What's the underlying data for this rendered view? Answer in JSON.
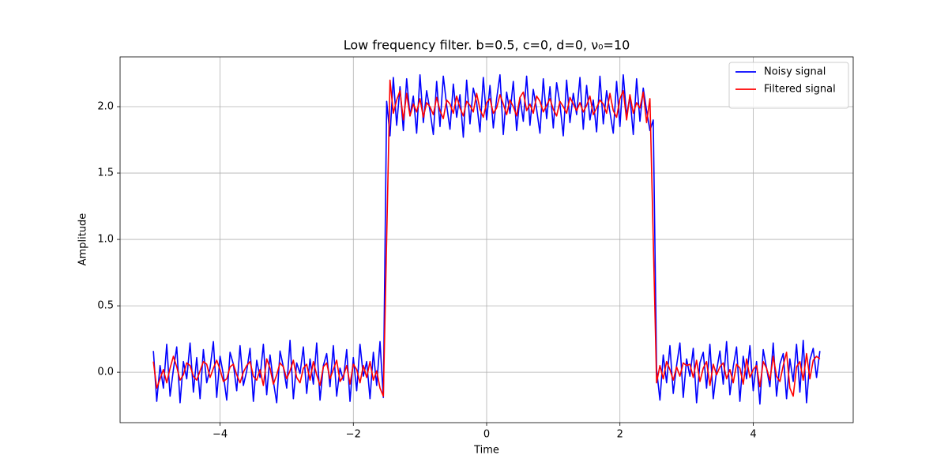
{
  "chart_data": {
    "type": "line",
    "title": "Low frequency filter. b=0.5, c=0, d=0, ν₀=10",
    "x_label": "Time",
    "y_label": "Amplitude",
    "xlim": [
      -5.5,
      5.5
    ],
    "ylim": [
      -0.38,
      2.375
    ],
    "xticks": [
      {
        "value": -4,
        "label": "−4"
      },
      {
        "value": -2,
        "label": "−2"
      },
      0,
      2,
      4
    ],
    "yticks": [
      {
        "value": 0,
        "label": "0.0"
      },
      {
        "value": 0.5,
        "label": "0.5"
      },
      {
        "value": 1,
        "label": "1.0"
      },
      {
        "value": 1.5,
        "label": "1.5"
      },
      {
        "value": 2,
        "label": "2.0"
      }
    ],
    "grid": true,
    "legend": "upper-right",
    "x": [
      -5,
      -4.95,
      -4.9,
      -4.85,
      -4.8,
      -4.75,
      -4.7,
      -4.65,
      -4.6,
      -4.55,
      -4.5,
      -4.45,
      -4.4,
      -4.35,
      -4.3,
      -4.25,
      -4.2,
      -4.15,
      -4.1,
      -4.05,
      -4,
      -3.95,
      -3.9,
      -3.85,
      -3.8,
      -3.75,
      -3.7,
      -3.65,
      -3.6,
      -3.55,
      -3.5,
      -3.45,
      -3.4,
      -3.35,
      -3.3,
      -3.25,
      -3.2,
      -3.15,
      -3.1,
      -3.05,
      -3,
      -2.95,
      -2.9,
      -2.85,
      -2.8,
      -2.75,
      -2.7,
      -2.65,
      -2.6,
      -2.55,
      -2.5,
      -2.45,
      -2.4,
      -2.35,
      -2.3,
      -2.25,
      -2.2,
      -2.15,
      -2.1,
      -2.05,
      -2,
      -1.95,
      -1.9,
      -1.85,
      -1.8,
      -1.75,
      -1.7,
      -1.65,
      -1.6,
      -1.55,
      -1.5,
      -1.45,
      -1.4,
      -1.35,
      -1.3,
      -1.25,
      -1.2,
      -1.15,
      -1.1,
      -1.05,
      -1,
      -0.95,
      -0.9,
      -0.85,
      -0.8,
      -0.75,
      -0.7,
      -0.65,
      -0.6,
      -0.55,
      -0.5,
      -0.45,
      -0.4,
      -0.35,
      -0.3,
      -0.25,
      -0.2,
      -0.15,
      -0.1,
      -0.05,
      0,
      0.05,
      0.1,
      0.15,
      0.2,
      0.25,
      0.3,
      0.35,
      0.4,
      0.45,
      0.5,
      0.55,
      0.6,
      0.65,
      0.7,
      0.75,
      0.8,
      0.85,
      0.9,
      0.95,
      1,
      1.05,
      1.1,
      1.15,
      1.2,
      1.25,
      1.3,
      1.35,
      1.4,
      1.45,
      1.5,
      1.55,
      1.6,
      1.65,
      1.7,
      1.75,
      1.8,
      1.85,
      1.9,
      1.95,
      2,
      2.05,
      2.1,
      2.15,
      2.2,
      2.25,
      2.3,
      2.35,
      2.4,
      2.45,
      2.5,
      2.55,
      2.6,
      2.65,
      2.7,
      2.75,
      2.8,
      2.85,
      2.9,
      2.95,
      3,
      3.05,
      3.1,
      3.15,
      3.2,
      3.25,
      3.3,
      3.35,
      3.4,
      3.45,
      3.5,
      3.55,
      3.6,
      3.65,
      3.7,
      3.75,
      3.8,
      3.85,
      3.9,
      3.95,
      4,
      4.05,
      4.1,
      4.15,
      4.2,
      4.25,
      4.3,
      4.35,
      4.4,
      4.45,
      4.5,
      4.55,
      4.6,
      4.65,
      4.7,
      4.75,
      4.8,
      4.85,
      4.9,
      4.95,
      5
    ],
    "series": [
      {
        "name": "Noisy signal",
        "color": "#0000ff",
        "values": [
          0.16,
          -0.22,
          0.05,
          -0.12,
          0.21,
          -0.18,
          0.02,
          0.19,
          -0.23,
          0.08,
          -0.05,
          0.22,
          -0.15,
          0.11,
          -0.2,
          0.17,
          -0.08,
          0.03,
          0.23,
          -0.19,
          0.12,
          -0.02,
          -0.21,
          0.15,
          0.06,
          -0.14,
          0.2,
          -0.1,
          0.01,
          0.18,
          -0.22,
          0.09,
          -0.04,
          0.21,
          -0.17,
          0.13,
          -0.07,
          -0.23,
          0.16,
          0.04,
          -0.12,
          0.24,
          -0.2,
          0.07,
          -0.01,
          0.19,
          -0.16,
          0.1,
          -0.09,
          0.22,
          -0.21,
          0.05,
          0.14,
          -0.11,
          0.2,
          -0.18,
          0.03,
          -0.06,
          0.17,
          -0.22,
          0.11,
          -0.14,
          0.21,
          -0.03,
          0.08,
          -0.2,
          0.15,
          -0.1,
          0.23,
          -0.19,
          2.04,
          1.78,
          2.22,
          1.86,
          2.15,
          1.82,
          2.21,
          1.93,
          2.08,
          1.8,
          2.24,
          1.88,
          2.12,
          1.97,
          1.79,
          2.19,
          1.85,
          2.23,
          2.01,
          1.83,
          2.17,
          1.92,
          2.09,
          1.77,
          2.2,
          1.87,
          2.14,
          2.03,
          1.81,
          2.22,
          1.9,
          2.16,
          1.84,
          2.06,
          2.24,
          1.79,
          2.11,
          1.95,
          2.19,
          1.82,
          2.07,
          1.89,
          2.23,
          1.86,
          2.13,
          1.98,
          1.8,
          2.21,
          1.91,
          2.15,
          1.84,
          2.18,
          2.02,
          1.78,
          2.2,
          1.88,
          2.1,
          1.94,
          2.22,
          1.83,
          2.16,
          1.9,
          2.05,
          1.81,
          2.23,
          1.87,
          2.12,
          1.96,
          1.8,
          2.19,
          1.85,
          2.24,
          1.93,
          2.08,
          1.79,
          2.21,
          1.89,
          2.14,
          1.97,
          1.82,
          1.9,
          0.02,
          -0.21,
          0.13,
          -0.08,
          0.2,
          -0.16,
          0.05,
          0.22,
          -0.19,
          0.1,
          -0.03,
          0.18,
          -0.23,
          0.07,
          0.15,
          -0.12,
          0.21,
          -0.2,
          0.01,
          0.16,
          -0.09,
          0.23,
          -0.17,
          0.04,
          0.19,
          -0.22,
          0.12,
          -0.05,
          0.2,
          -0.14,
          0.08,
          -0.24,
          0.17,
          0.03,
          -0.11,
          0.22,
          -0.18,
          0.06,
          0.14,
          -0.2,
          0.1,
          -0.07,
          0.21,
          -0.15,
          0.24,
          -0.23,
          0.09,
          0.18,
          -0.04,
          0.16
        ]
      },
      {
        "name": "Filtered signal",
        "color": "#ff0000",
        "values": [
          0.08,
          -0.12,
          -0.05,
          0.02,
          -0.08,
          0.03,
          0.12,
          0.04,
          -0.06,
          -0.02,
          0.07,
          0.05,
          -0.03,
          -0.06,
          0.01,
          0.08,
          0.06,
          -0.04,
          0.03,
          0.09,
          0.02,
          -0.07,
          -0.05,
          0.04,
          0.06,
          -0.02,
          -0.08,
          0.0,
          0.05,
          0.08,
          -0.03,
          -0.06,
          0.02,
          -0.1,
          0.1,
          0.03,
          -0.09,
          -0.02,
          0.07,
          0.04,
          -0.05,
          0.01,
          0.09,
          -0.04,
          -0.08,
          0.03,
          0.06,
          -0.06,
          0.08,
          -0.02,
          -0.1,
          0.04,
          0.07,
          -0.05,
          0.02,
          0.09,
          -0.07,
          -0.03,
          0.05,
          -0.09,
          0.06,
          0.02,
          -0.08,
          0.05,
          -0.04,
          0.08,
          -0.06,
          0.01,
          -0.12,
          -0.18,
          1.0,
          2.2,
          1.95,
          2.05,
          2.12,
          1.9,
          2.1,
          1.93,
          2.02,
          1.96,
          2.06,
          1.92,
          2.03,
          2.0,
          1.94,
          2.07,
          1.97,
          1.91,
          2.05,
          2.02,
          1.95,
          2.08,
          1.99,
          1.93,
          2.04,
          2.01,
          1.96,
          2.1,
          1.98,
          1.92,
          2.03,
          2.06,
          1.95,
          1.99,
          2.09,
          2.02,
          1.94,
          2.05,
          2.0,
          1.93,
          2.07,
          2.11,
          1.97,
          2.02,
          1.95,
          2.08,
          2.04,
          1.96,
          2.01,
          2.06,
          1.98,
          1.93,
          2.04,
          2.0,
          1.95,
          2.07,
          2.02,
          1.97,
          2.03,
          1.96,
          2.01,
          2.08,
          1.94,
          1.99,
          2.05,
          2.02,
          1.95,
          2.1,
          1.97,
          1.92,
          2.06,
          2.12,
          1.9,
          2.09,
          1.95,
          2.03,
          1.99,
          2.11,
          1.88,
          2.06,
          1.0,
          -0.08,
          0.05,
          -0.05,
          0.08,
          0.02,
          -0.06,
          0.04,
          -0.03,
          0.07,
          0.05,
          0.06,
          -0.04,
          0.09,
          -0.07,
          0.03,
          0.08,
          -0.1,
          0.06,
          -0.02,
          0.04,
          0.07,
          -0.05,
          0.02,
          -0.08,
          0.06,
          0.03,
          -0.09,
          0.1,
          -0.04,
          0.02,
          0.05,
          -0.11,
          0.08,
          0.03,
          -0.06,
          0.12,
          -0.03,
          -0.07,
          0.05,
          0.15,
          -0.12,
          -0.18,
          0.04,
          0.08,
          -0.06,
          0.14,
          -0.05,
          0.09,
          0.12,
          0.1
        ]
      }
    ]
  }
}
